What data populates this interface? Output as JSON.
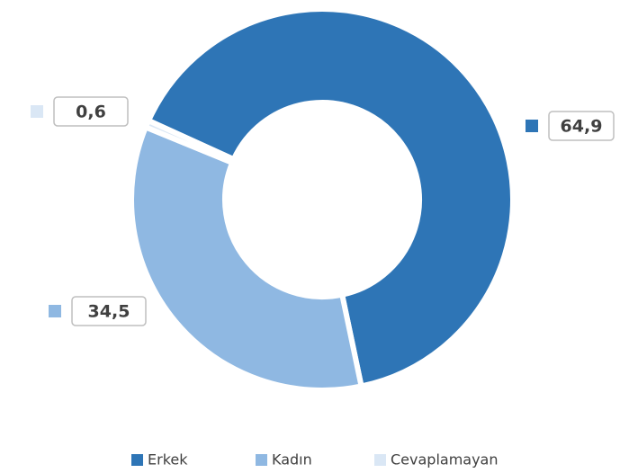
{
  "chart_data": {
    "type": "donut",
    "categories": [
      "Erkek",
      "Kadın",
      "Cevaplamayan"
    ],
    "values": [
      64.9,
      34.5,
      0.6
    ],
    "value_labels": [
      "64,9",
      "34,5",
      "0,6"
    ],
    "colors": [
      "#2e75b6",
      "#8fb8e2",
      "#dae7f5"
    ],
    "legend": "bottom"
  }
}
